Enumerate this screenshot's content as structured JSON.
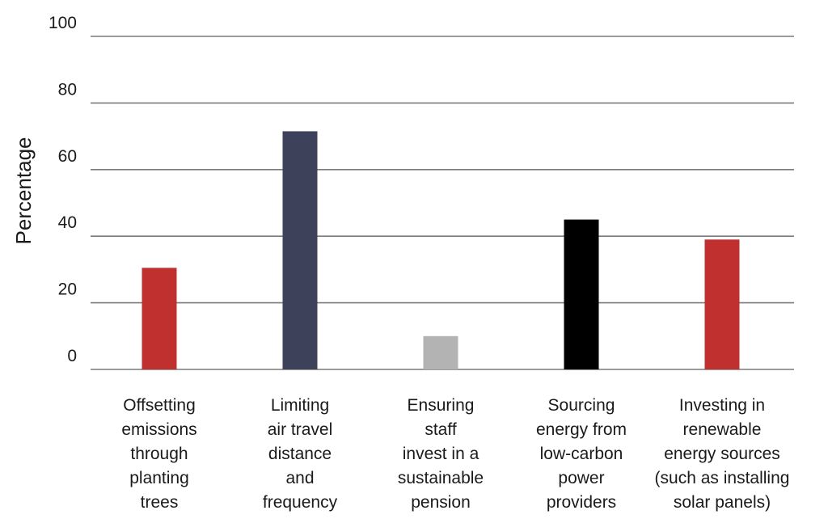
{
  "chart_data": {
    "type": "bar",
    "title": "",
    "xlabel": "",
    "ylabel": "Percentage",
    "ylim": [
      0,
      100
    ],
    "yticks": [
      0,
      20,
      40,
      60,
      80,
      100
    ],
    "grid": true,
    "categories": [
      "Offsetting emissions through planting trees",
      "Limiting air travel distance and frequency",
      "Ensuring staff invest in a sustainable pension",
      "Sourcing energy from low-carbon power providers",
      "Investing in renewable energy sources (such as installing solar panels)"
    ],
    "category_lines": [
      [
        "Offsetting",
        "emissions",
        "through",
        "planting",
        "trees"
      ],
      [
        "Limiting",
        "air travel",
        "distance",
        "and",
        "frequency"
      ],
      [
        "Ensuring",
        "staff",
        "invest in a",
        "sustainable",
        "pension"
      ],
      [
        "Sourcing",
        "energy from",
        "low-carbon",
        "power",
        "providers"
      ],
      [
        "Investing in",
        "renewable",
        "energy sources",
        "(such as installing",
        "solar panels)"
      ]
    ],
    "values": [
      30.5,
      71.5,
      10,
      45,
      39
    ],
    "colors": [
      "#c0302f",
      "#3d4159",
      "#b3b3b3",
      "#000000",
      "#c0302f"
    ]
  }
}
